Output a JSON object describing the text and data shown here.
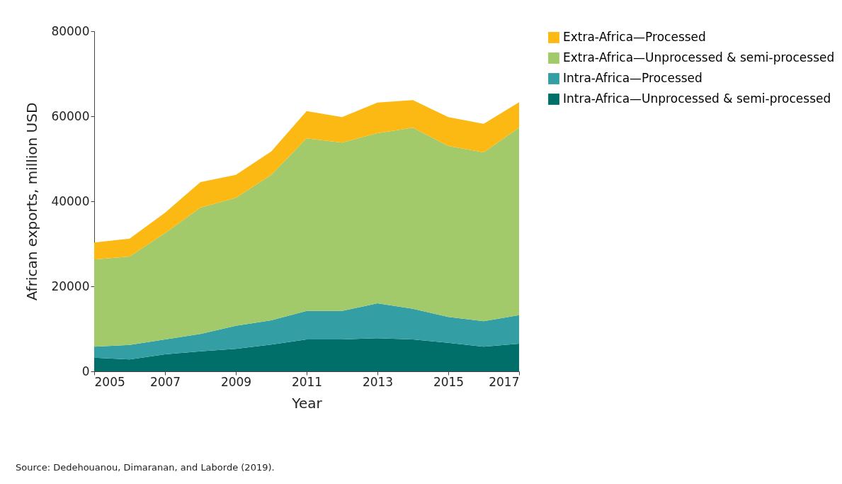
{
  "chart_data": {
    "type": "area",
    "stacked": true,
    "xlabel": "Year",
    "ylabel": "African exports, million USD",
    "x": [
      2005,
      2006,
      2007,
      2008,
      2009,
      2010,
      2011,
      2012,
      2013,
      2014,
      2015,
      2016,
      2017
    ],
    "xlim": [
      2005,
      2017
    ],
    "xticks": [
      2005,
      2007,
      2009,
      2011,
      2013,
      2015,
      2017
    ],
    "ylim": [
      0,
      80000
    ],
    "yticks": [
      0,
      20000,
      40000,
      60000,
      80000
    ],
    "series": [
      {
        "name": "Intra-Africa—Unprocessed & semi-processed",
        "color": "#006f69",
        "values": [
          3200,
          2800,
          4000,
          4700,
          5300,
          6300,
          7500,
          7500,
          7800,
          7500,
          6700,
          5800,
          6500
        ]
      },
      {
        "name": "Intra-Africa—Processed",
        "color": "#339ea4",
        "values": [
          2600,
          3400,
          3500,
          4100,
          5400,
          5700,
          6700,
          6700,
          8200,
          7200,
          6100,
          6000,
          6700
        ]
      },
      {
        "name": "Extra-Africa—Unprocessed & semi-processed",
        "color": "#a2c96a",
        "values": [
          20500,
          20800,
          25000,
          29700,
          30100,
          34200,
          40600,
          39600,
          40000,
          42600,
          40200,
          39700,
          44100
        ]
      },
      {
        "name": "Extra-Africa—Processed",
        "color": "#fdb913",
        "values": [
          4000,
          4200,
          4800,
          6000,
          5400,
          5500,
          6400,
          6000,
          7200,
          6500,
          6800,
          6700,
          6000
        ]
      }
    ],
    "legend": "right",
    "grid": false,
    "annotations": [
      "Source: Dedehouanou, Dimaranan, and Laborde (2019)."
    ]
  }
}
